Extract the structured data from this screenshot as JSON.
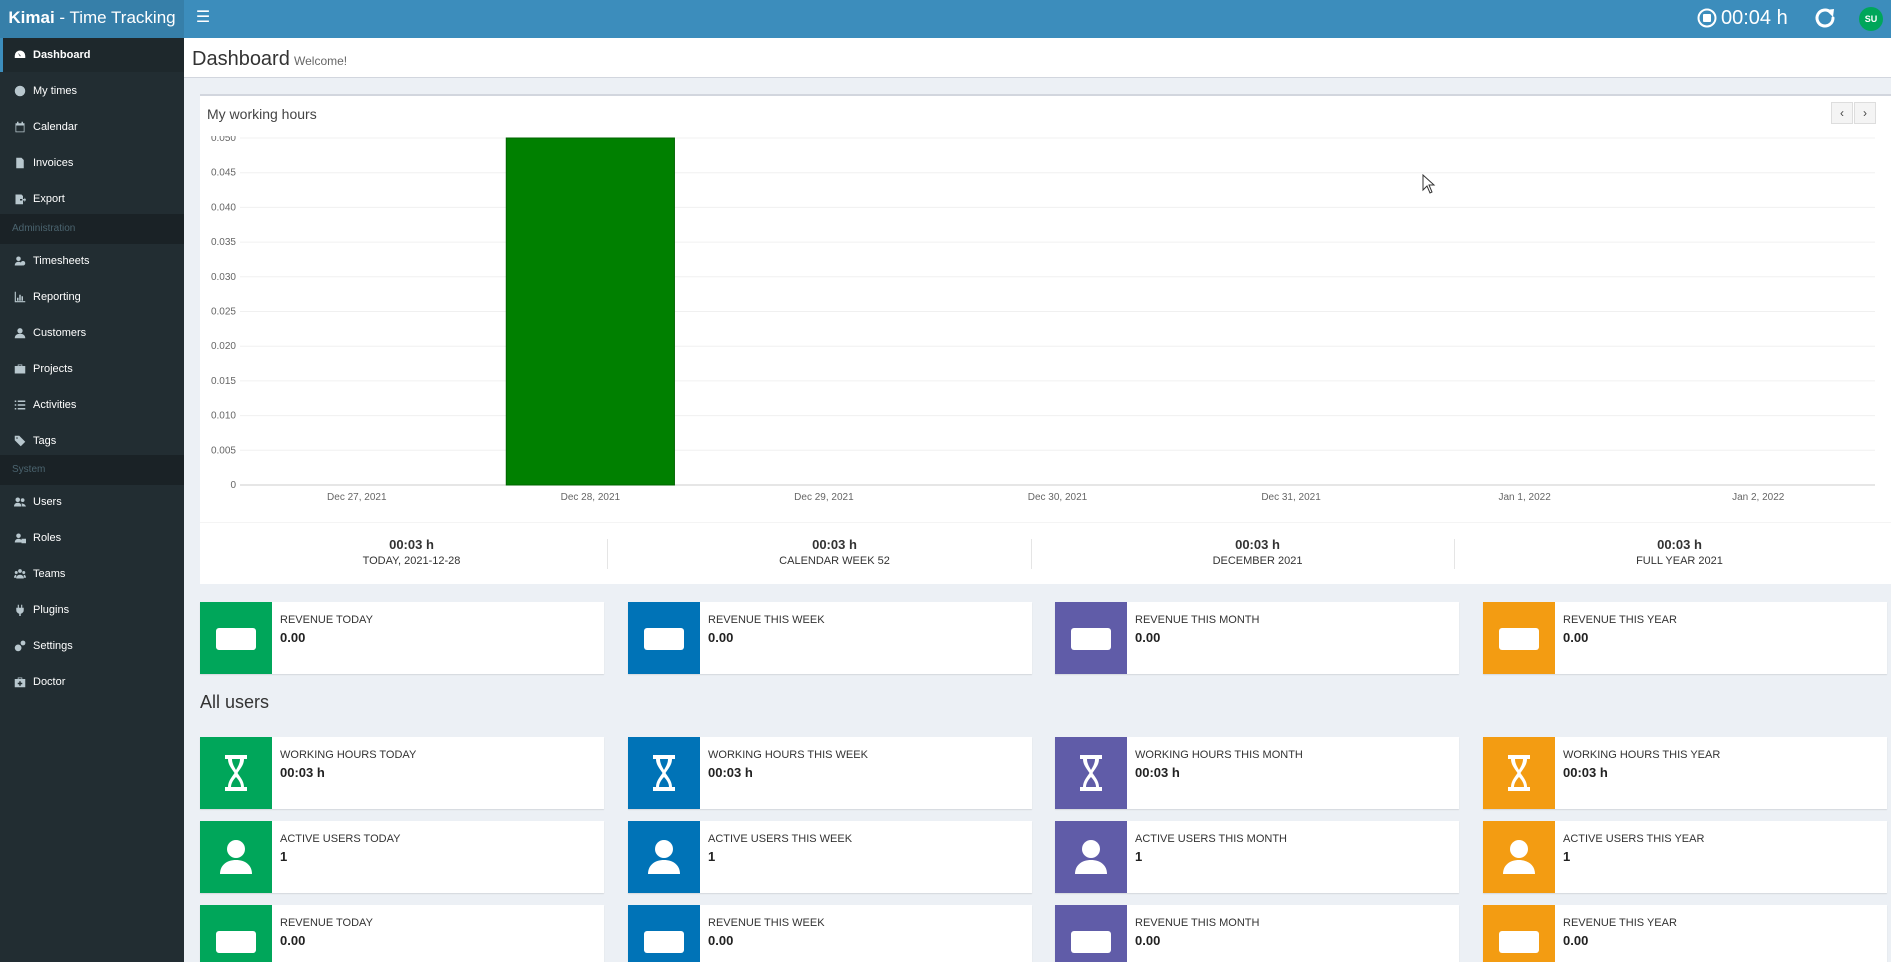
{
  "app": {
    "brand_bold": "Kimai",
    "brand_rest": " - Time Tracking",
    "timer": "00:04 h",
    "user_initials": "SU"
  },
  "sidebar": {
    "items1": [
      {
        "label": "Dashboard",
        "icon": "dashboard-icon",
        "active": true
      },
      {
        "label": "My times",
        "icon": "clock-icon"
      },
      {
        "label": "Calendar",
        "icon": "calendar-icon"
      },
      {
        "label": "Invoices",
        "icon": "invoice-icon"
      },
      {
        "label": "Export",
        "icon": "export-icon"
      }
    ],
    "header_admin": "Administration",
    "items2": [
      {
        "label": "Timesheets",
        "icon": "users-clock-icon"
      },
      {
        "label": "Reporting",
        "icon": "chart-icon"
      },
      {
        "label": "Customers",
        "icon": "user-icon"
      },
      {
        "label": "Projects",
        "icon": "briefcase-icon"
      },
      {
        "label": "Activities",
        "icon": "list-icon"
      },
      {
        "label": "Tags",
        "icon": "tags-icon"
      }
    ],
    "header_system": "System",
    "items3": [
      {
        "label": "Users",
        "icon": "users-icon"
      },
      {
        "label": "Roles",
        "icon": "user-lock-icon"
      },
      {
        "label": "Teams",
        "icon": "team-icon"
      },
      {
        "label": "Plugins",
        "icon": "plug-icon"
      },
      {
        "label": "Settings",
        "icon": "cogs-icon"
      },
      {
        "label": "Doctor",
        "icon": "medkit-icon"
      }
    ]
  },
  "header": {
    "title": "Dashboard",
    "subtitle": "Welcome!"
  },
  "working_hours": {
    "title": "My working hours",
    "prev": "‹",
    "next": "›",
    "summary": [
      {
        "value": "00:03 h",
        "label": "TODAY, 2021-12-28"
      },
      {
        "value": "00:03 h",
        "label": "CALENDAR WEEK 52"
      },
      {
        "value": "00:03 h",
        "label": "DECEMBER 2021"
      },
      {
        "value": "00:03 h",
        "label": "FULL YEAR 2021"
      }
    ]
  },
  "chart_data": {
    "type": "bar",
    "title": "My working hours",
    "categories": [
      "Dec 27, 2021",
      "Dec 28, 2021",
      "Dec 29, 2021",
      "Dec 30, 2021",
      "Dec 31, 2021",
      "Jan 1, 2022",
      "Jan 2, 2022"
    ],
    "values": [
      0,
      0.05,
      0,
      0,
      0,
      0,
      0
    ],
    "yticks": [
      "0",
      "0.005",
      "0.010",
      "0.015",
      "0.020",
      "0.025",
      "0.030",
      "0.035",
      "0.040",
      "0.045",
      "0.050"
    ],
    "ylim": [
      0,
      0.05
    ],
    "color": "#008000"
  },
  "revenue_top": [
    {
      "label": "REVENUE TODAY",
      "value": "0.00",
      "color": "green"
    },
    {
      "label": "REVENUE THIS WEEK",
      "value": "0.00",
      "color": "blue"
    },
    {
      "label": "REVENUE THIS MONTH",
      "value": "0.00",
      "color": "purple"
    },
    {
      "label": "REVENUE THIS YEAR",
      "value": "0.00",
      "color": "orange"
    }
  ],
  "all_users": {
    "title": "All users",
    "working": [
      {
        "label": "WORKING HOURS TODAY",
        "value": "00:03 h"
      },
      {
        "label": "WORKING HOURS THIS WEEK",
        "value": "00:03 h"
      },
      {
        "label": "WORKING HOURS THIS MONTH",
        "value": "00:03 h"
      },
      {
        "label": "WORKING HOURS THIS YEAR",
        "value": "00:03 h"
      }
    ],
    "active": [
      {
        "label": "ACTIVE USERS TODAY",
        "value": "1"
      },
      {
        "label": "ACTIVE USERS THIS WEEK",
        "value": "1"
      },
      {
        "label": "ACTIVE USERS THIS MONTH",
        "value": "1"
      },
      {
        "label": "ACTIVE USERS THIS YEAR",
        "value": "1"
      }
    ],
    "revenue": [
      {
        "label": "REVENUE TODAY",
        "value": "0.00"
      },
      {
        "label": "REVENUE THIS WEEK",
        "value": "0.00"
      },
      {
        "label": "REVENUE THIS MONTH",
        "value": "0.00"
      },
      {
        "label": "REVENUE THIS YEAR",
        "value": "0.00"
      }
    ]
  },
  "colors": {
    "green": "#00a65a",
    "blue": "#0073b7",
    "purple": "#605ca8",
    "orange": "#f39c12",
    "navbar": "#3c8dbc",
    "sidebar": "#222d32"
  }
}
